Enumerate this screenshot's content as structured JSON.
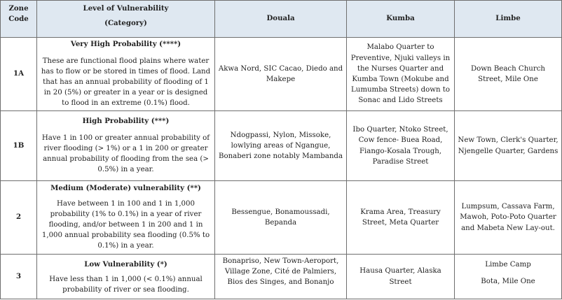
{
  "header": {
    "zone_code": "Zone Code",
    "vulnerability_line1": "Level of Vulnerability",
    "vulnerability_line2": "(Category)",
    "douala": "Douala",
    "kumba": "Kumba",
    "limbe": "Limbe"
  },
  "rows": [
    {
      "code": "1A",
      "title": "Very High Probability (****)",
      "description": "These are functional flood plains where water has to flow or be stored in times of flood. Land that has an annual probability of flooding of 1 in 20 (5%) or greater in a year or is designed to flood in an extreme (0.1%) flood.",
      "douala": "Akwa Nord, SIC Cacao, Diedo and Makepe",
      "kumba": "Malabo Quarter to Preventive, Njuki valleys in the Nurses Quarter and Kumba Town (Mokube and Lumumba Streets) down to Sonac and Lido Streets",
      "limbe": "Down Beach Church Street, Mile One"
    },
    {
      "code": "1B",
      "title": "High Probability (***)",
      "description": "Have 1 in 100 or greater annual probability of river flooding (> 1%) or a 1 in 200 or greater annual probability of flooding from the sea (> 0.5%) in a year.",
      "douala": "Ndogpassi, Nylon, Missoke, lowlying areas of Ngangue, Bonaberi zone notably Mambanda",
      "kumba": "Ibo Quarter, Ntoko Street, Cow fence- Buea Road, Fiango-Kosala Trough, Paradise Street",
      "limbe": "New Town, Clerk's Quarter, Njengelle Quarter, Gardens"
    },
    {
      "code": "2",
      "title": "Medium (Moderate) vulnerability (**)",
      "description": "Have between 1 in 100 and 1 in 1,000 probability (1% to 0.1%) in a year of river flooding, and/or between 1 in 200 and 1 in 1,000 annual probability sea flooding (0.5% to 0.1%) in a year.",
      "douala": "Bessengue, Bonamoussadi, Bepanda",
      "kumba": "Krama Area, Treasury Street, Meta Quarter",
      "limbe": "Lumpsum, Cassava Farm, Mawoh, Poto-Poto Quarter and Mabeta New Lay-out."
    },
    {
      "code": "3",
      "title": "Low Vulnerability (*)",
      "description": "Have less than 1 in 1,000 (< 0.1%) annual probability of river or sea flooding.",
      "douala": "Bonapriso, New Town-Aeroport, Village Zone, Cité de Palmiers, Bios des Singes, and Bonanjo",
      "kumba": "Hausa Quarter, Alaska Street",
      "limbe_line1": "Limbe Camp",
      "limbe_line2": "Bota, Mile One"
    }
  ]
}
